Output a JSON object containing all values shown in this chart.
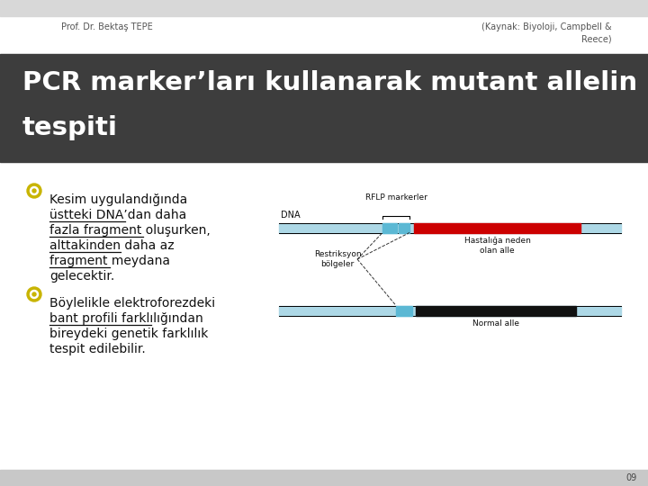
{
  "bg_color": "#ffffff",
  "header_bg": "#3d3d3d",
  "header_text_color": "#ffffff",
  "header_line1": "PCR marker’ları kullanarak mutant allelin",
  "header_line2": "tespiti",
  "top_left_text": "Prof. Dr. Bektaş TEPE",
  "top_right_text": "(Kaynak: Biyoloji, Campbell &\nReece)",
  "bullet_color_outer": "#c8b400",
  "bullet_color_inner": "#ffffff",
  "bullet1_lines": [
    "Kesim uygulandığında",
    "üstteki DNA’dan daha",
    "fazla fragment oluşurken,",
    "alttakinden daha az",
    "fragment meydana",
    "gelecektir."
  ],
  "bullet1_underline": [
    false,
    true,
    true,
    true,
    true,
    false
  ],
  "bullet2_lines": [
    "Böylelikle elektroforezdeki",
    "bant profili farklılığından",
    "bireydeki genetik farklılık",
    "tespit edilebilir."
  ],
  "bullet2_underline": [
    false,
    true,
    false,
    false
  ],
  "bullet2_bold_words": [
    "genetik farklılık"
  ],
  "dna_label": "DNA",
  "rflp_label": "RFLP markerler",
  "restriction_label": "Restriksyon\nbölgeler",
  "disease_label": "Hastalığa neden\nolan alle",
  "normal_label": "Normal alle",
  "strand_color": "#add8e6",
  "marker_color": "#5bb8d4",
  "disease_color": "#cc0000",
  "normal_color": "#111111",
  "footer_bg": "#c8c8c8",
  "page_number": "09"
}
